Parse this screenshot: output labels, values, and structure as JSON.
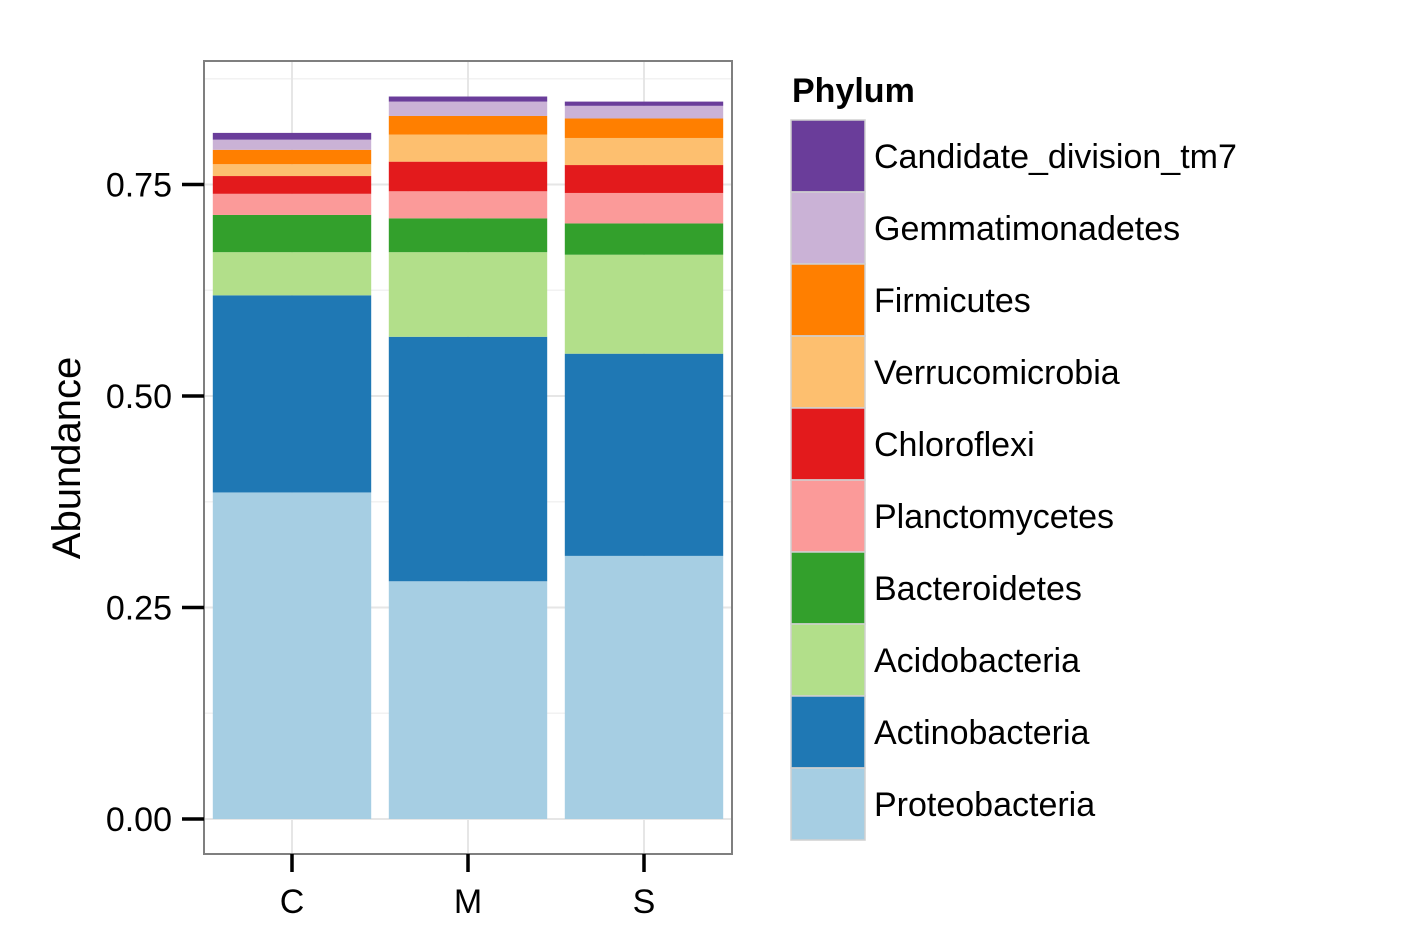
{
  "chart_data": {
    "type": "bar",
    "stacked": true,
    "ylabel": "Abundance",
    "xlabel": "",
    "ylim": [
      0,
      0.9
    ],
    "yticks": [
      "0.00",
      "0.25",
      "0.50",
      "0.75"
    ],
    "categories": [
      "C",
      "M",
      "S"
    ],
    "legend": {
      "title": "Phylum",
      "placement": "right"
    },
    "grid": true,
    "series": [
      {
        "name": "Proteobacteria",
        "color": "#a6cee3",
        "values": [
          0.386,
          0.281,
          0.311
        ]
      },
      {
        "name": "Actinobacteria",
        "color": "#1f78b4",
        "values": [
          0.233,
          0.289,
          0.239
        ]
      },
      {
        "name": "Acidobacteria",
        "color": "#b2df8a",
        "values": [
          0.051,
          0.1,
          0.117
        ]
      },
      {
        "name": "Bacteroidetes",
        "color": "#33a02c",
        "values": [
          0.044,
          0.04,
          0.037
        ]
      },
      {
        "name": "Planctomycetes",
        "color": "#fb9a99",
        "values": [
          0.025,
          0.032,
          0.036
        ]
      },
      {
        "name": "Chloroflexi",
        "color": "#e31a1c",
        "values": [
          0.021,
          0.035,
          0.033
        ]
      },
      {
        "name": "Verrucomicrobia",
        "color": "#fdbf6f",
        "values": [
          0.014,
          0.032,
          0.032
        ]
      },
      {
        "name": "Firmicutes",
        "color": "#ff7f00",
        "values": [
          0.017,
          0.022,
          0.023
        ]
      },
      {
        "name": "Gemmatimonadetes",
        "color": "#cab2d6",
        "values": [
          0.012,
          0.017,
          0.015
        ]
      },
      {
        "name": "Candidate_division_tm7",
        "color": "#6a3d9a",
        "values": [
          0.008,
          0.006,
          0.005
        ]
      }
    ]
  }
}
